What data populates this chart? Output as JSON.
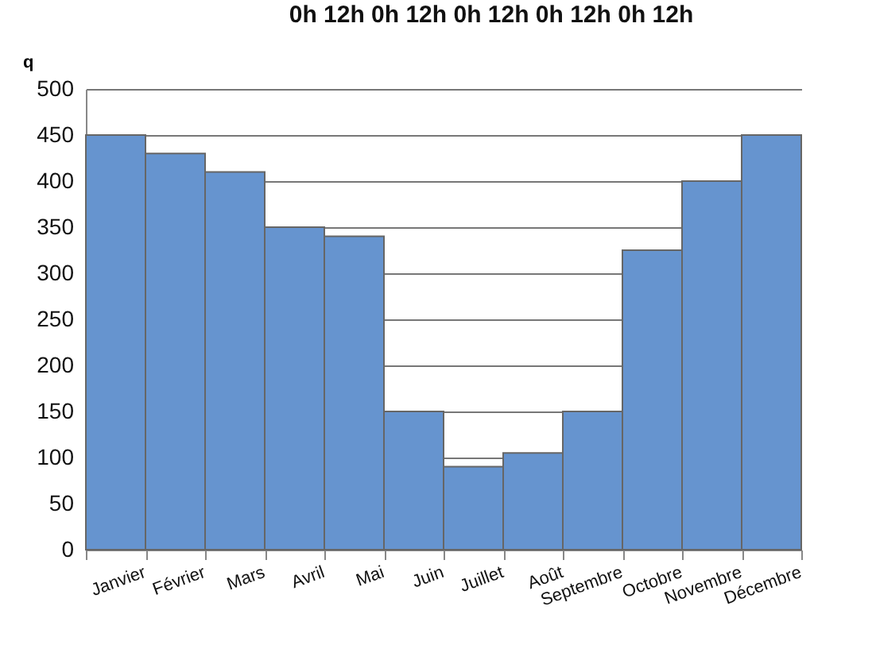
{
  "chart_data": {
    "type": "bar",
    "ylabel": "q",
    "annotations": [
      "0h  12h  0h  12h  0h  12h  0h  12h  0h  12h"
    ],
    "categories": [
      "Janvier",
      "Février",
      "Mars",
      "Avril",
      "Mai",
      "Juin",
      "Juillet",
      "Août",
      "Septembre",
      "Octobre",
      "Novembre",
      "Décembre"
    ],
    "values": [
      450,
      430,
      410,
      350,
      340,
      150,
      90,
      105,
      150,
      325,
      400,
      450
    ],
    "color": "#6694cf",
    "ylim": [
      0,
      500
    ],
    "yticks": [
      0,
      50,
      100,
      150,
      200,
      250,
      300,
      350,
      400,
      450,
      500
    ],
    "grid": true
  }
}
